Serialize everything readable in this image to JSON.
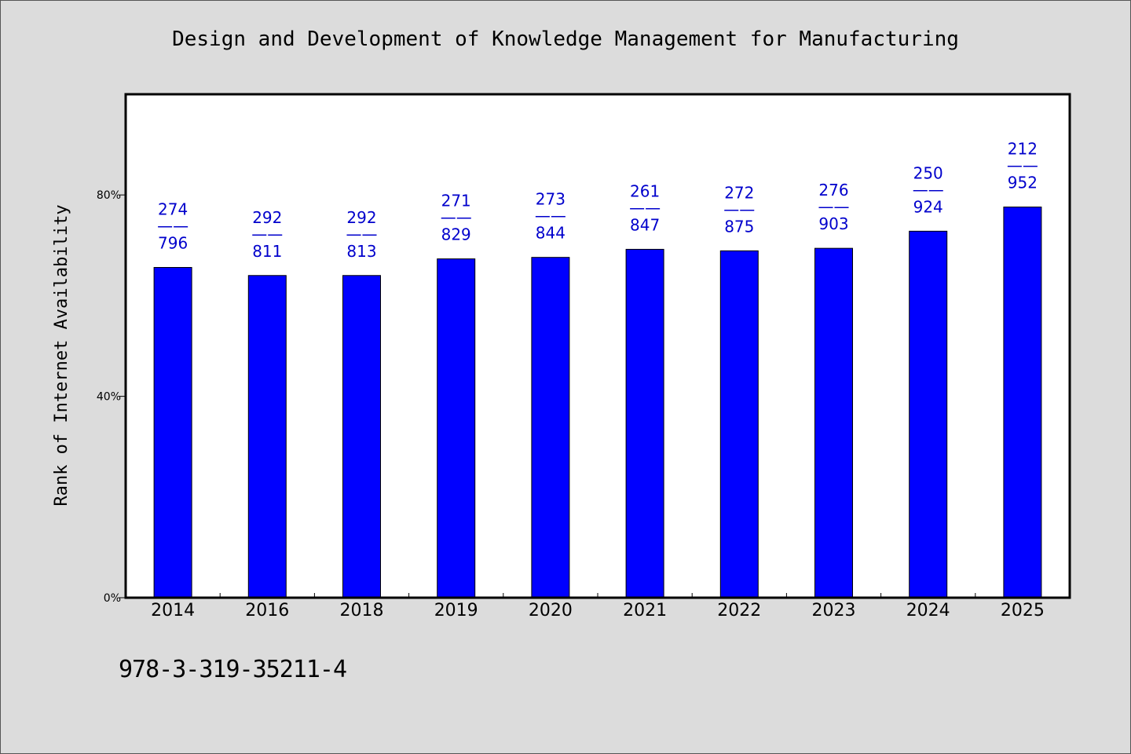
{
  "chart_data": {
    "type": "bar",
    "title": "Design and Development of Knowledge Management for Manufacturing",
    "ylabel": "Rank of Internet Availability",
    "xlabel": "",
    "categories": [
      "2014",
      "2016",
      "2018",
      "2019",
      "2020",
      "2021",
      "2022",
      "2023",
      "2024",
      "2025"
    ],
    "values": [
      65.6,
      64.0,
      64.0,
      67.3,
      67.6,
      69.2,
      68.9,
      69.4,
      72.8,
      77.6
    ],
    "labels_top": [
      "274",
      "292",
      "292",
      "271",
      "273",
      "261",
      "272",
      "276",
      "250",
      "212"
    ],
    "labels_bottom": [
      "796",
      "811",
      "813",
      "829",
      "844",
      "847",
      "875",
      "903",
      "924",
      "952"
    ],
    "label_separator": "——",
    "ylim": [
      0,
      100
    ],
    "yticks": [
      0,
      40,
      80
    ],
    "ytick_labels": [
      "0%",
      "40%",
      "80%"
    ],
    "grid": false,
    "bar_color": "#0000ff"
  },
  "footer": {
    "isbn": "978-3-319-35211-4"
  }
}
